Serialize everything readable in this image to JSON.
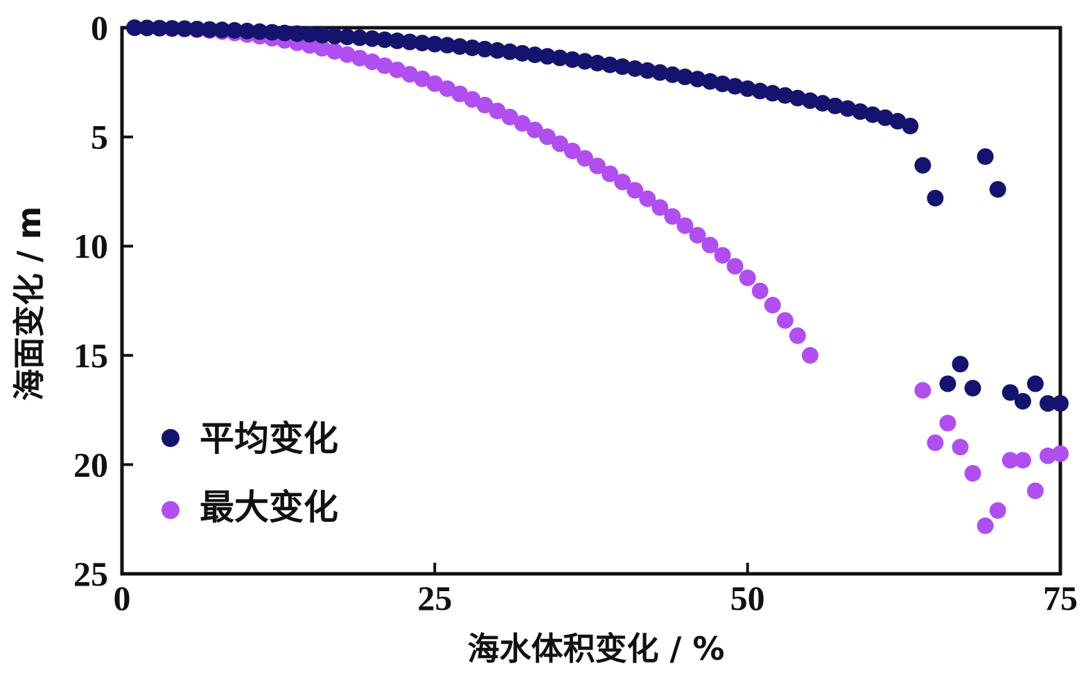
{
  "chart_data": {
    "type": "scatter",
    "xlabel": "海水体积变化 / %",
    "ylabel": "海面变化 / m",
    "xlim": [
      0,
      75
    ],
    "ylim": [
      25,
      0
    ],
    "y_inverted": true,
    "xticks": [
      "0",
      "25",
      "50",
      "75"
    ],
    "yticks": [
      "0",
      "5",
      "10",
      "15",
      "20",
      "25"
    ],
    "grid": false,
    "legend_position": "lower-left",
    "series": [
      {
        "name": "平均变化",
        "color": "#14146e",
        "points": [
          [
            1.0,
            0.0
          ],
          [
            2.0,
            0.01
          ],
          [
            3.0,
            0.02
          ],
          [
            4.0,
            0.03
          ],
          [
            5.0,
            0.04
          ],
          [
            6.0,
            0.06
          ],
          [
            7.0,
            0.08
          ],
          [
            8.0,
            0.1
          ],
          [
            9.0,
            0.12
          ],
          [
            10.0,
            0.15
          ],
          [
            11.0,
            0.18
          ],
          [
            12.0,
            0.21
          ],
          [
            13.0,
            0.24
          ],
          [
            14.0,
            0.27
          ],
          [
            15.0,
            0.3
          ],
          [
            16.0,
            0.34
          ],
          [
            17.0,
            0.38
          ],
          [
            18.0,
            0.42
          ],
          [
            19.0,
            0.46
          ],
          [
            20.0,
            0.5
          ],
          [
            21.0,
            0.55
          ],
          [
            22.0,
            0.6
          ],
          [
            23.0,
            0.65
          ],
          [
            24.0,
            0.7
          ],
          [
            25.0,
            0.75
          ],
          [
            26.0,
            0.8
          ],
          [
            27.0,
            0.86
          ],
          [
            28.0,
            0.92
          ],
          [
            29.0,
            0.98
          ],
          [
            30.0,
            1.04
          ],
          [
            31.0,
            1.1
          ],
          [
            32.0,
            1.17
          ],
          [
            33.0,
            1.24
          ],
          [
            34.0,
            1.31
          ],
          [
            35.0,
            1.38
          ],
          [
            36.0,
            1.46
          ],
          [
            37.0,
            1.54
          ],
          [
            38.0,
            1.62
          ],
          [
            39.0,
            1.7
          ],
          [
            40.0,
            1.78
          ],
          [
            41.0,
            1.87
          ],
          [
            42.0,
            1.96
          ],
          [
            43.0,
            2.05
          ],
          [
            44.0,
            2.15
          ],
          [
            45.0,
            2.25
          ],
          [
            46.0,
            2.35
          ],
          [
            47.0,
            2.46
          ],
          [
            48.0,
            2.57
          ],
          [
            49.0,
            2.68
          ],
          [
            50.0,
            2.79
          ],
          [
            51.0,
            2.9
          ],
          [
            52.0,
            3.0
          ],
          [
            53.0,
            3.1
          ],
          [
            54.0,
            3.22
          ],
          [
            55.0,
            3.34
          ],
          [
            56.0,
            3.46
          ],
          [
            57.0,
            3.58
          ],
          [
            58.0,
            3.7
          ],
          [
            59.0,
            3.84
          ],
          [
            60.0,
            3.98
          ],
          [
            61.0,
            4.12
          ],
          [
            62.0,
            4.28
          ],
          [
            63.0,
            4.5
          ],
          [
            64.0,
            6.3
          ],
          [
            65.0,
            7.8
          ],
          [
            66.0,
            16.3
          ],
          [
            67.0,
            15.4
          ],
          [
            68.0,
            16.5
          ],
          [
            69.0,
            5.9
          ],
          [
            70.0,
            7.4
          ],
          [
            71.0,
            16.7
          ],
          [
            72.0,
            17.1
          ],
          [
            73.0,
            16.3
          ],
          [
            74.0,
            17.2
          ],
          [
            75.0,
            17.2
          ]
        ]
      },
      {
        "name": "最大变化",
        "color": "#b04ef0",
        "points": [
          [
            1.0,
            0.0
          ],
          [
            2.0,
            0.01
          ],
          [
            3.0,
            0.02
          ],
          [
            4.0,
            0.04
          ],
          [
            5.0,
            0.06
          ],
          [
            6.0,
            0.09
          ],
          [
            7.0,
            0.13
          ],
          [
            8.0,
            0.18
          ],
          [
            9.0,
            0.24
          ],
          [
            10.0,
            0.31
          ],
          [
            11.0,
            0.39
          ],
          [
            12.0,
            0.48
          ],
          [
            13.0,
            0.58
          ],
          [
            14.0,
            0.69
          ],
          [
            15.0,
            0.81
          ],
          [
            16.0,
            0.94
          ],
          [
            17.0,
            1.08
          ],
          [
            18.0,
            1.23
          ],
          [
            19.0,
            1.39
          ],
          [
            20.0,
            1.56
          ],
          [
            21.0,
            1.74
          ],
          [
            22.0,
            1.93
          ],
          [
            23.0,
            2.13
          ],
          [
            24.0,
            2.34
          ],
          [
            25.0,
            2.56
          ],
          [
            26.0,
            2.79
          ],
          [
            27.0,
            3.03
          ],
          [
            28.0,
            3.28
          ],
          [
            29.0,
            3.54
          ],
          [
            30.0,
            3.81
          ],
          [
            31.0,
            4.09
          ],
          [
            32.0,
            4.38
          ],
          [
            33.0,
            4.68
          ],
          [
            34.0,
            4.99
          ],
          [
            35.0,
            5.31
          ],
          [
            36.0,
            5.64
          ],
          [
            37.0,
            5.98
          ],
          [
            38.0,
            6.33
          ],
          [
            39.0,
            6.69
          ],
          [
            40.0,
            7.06
          ],
          [
            41.0,
            7.44
          ],
          [
            42.0,
            7.83
          ],
          [
            43.0,
            8.23
          ],
          [
            44.0,
            8.64
          ],
          [
            45.0,
            9.06
          ],
          [
            46.0,
            9.5
          ],
          [
            47.0,
            9.95
          ],
          [
            48.0,
            10.42
          ],
          [
            49.0,
            10.92
          ],
          [
            50.0,
            11.45
          ],
          [
            51.0,
            12.05
          ],
          [
            52.0,
            12.7
          ],
          [
            53.0,
            13.4
          ],
          [
            54.0,
            14.1
          ],
          [
            55.0,
            15.0
          ],
          [
            64.0,
            16.6
          ],
          [
            65.0,
            19.0
          ],
          [
            66.0,
            18.1
          ],
          [
            67.0,
            19.2
          ],
          [
            68.0,
            20.4
          ],
          [
            69.0,
            22.8
          ],
          [
            70.0,
            22.1
          ],
          [
            71.0,
            19.8
          ],
          [
            72.0,
            19.8
          ],
          [
            73.0,
            21.2
          ],
          [
            74.0,
            19.6
          ],
          [
            75.0,
            19.5
          ]
        ]
      }
    ]
  }
}
